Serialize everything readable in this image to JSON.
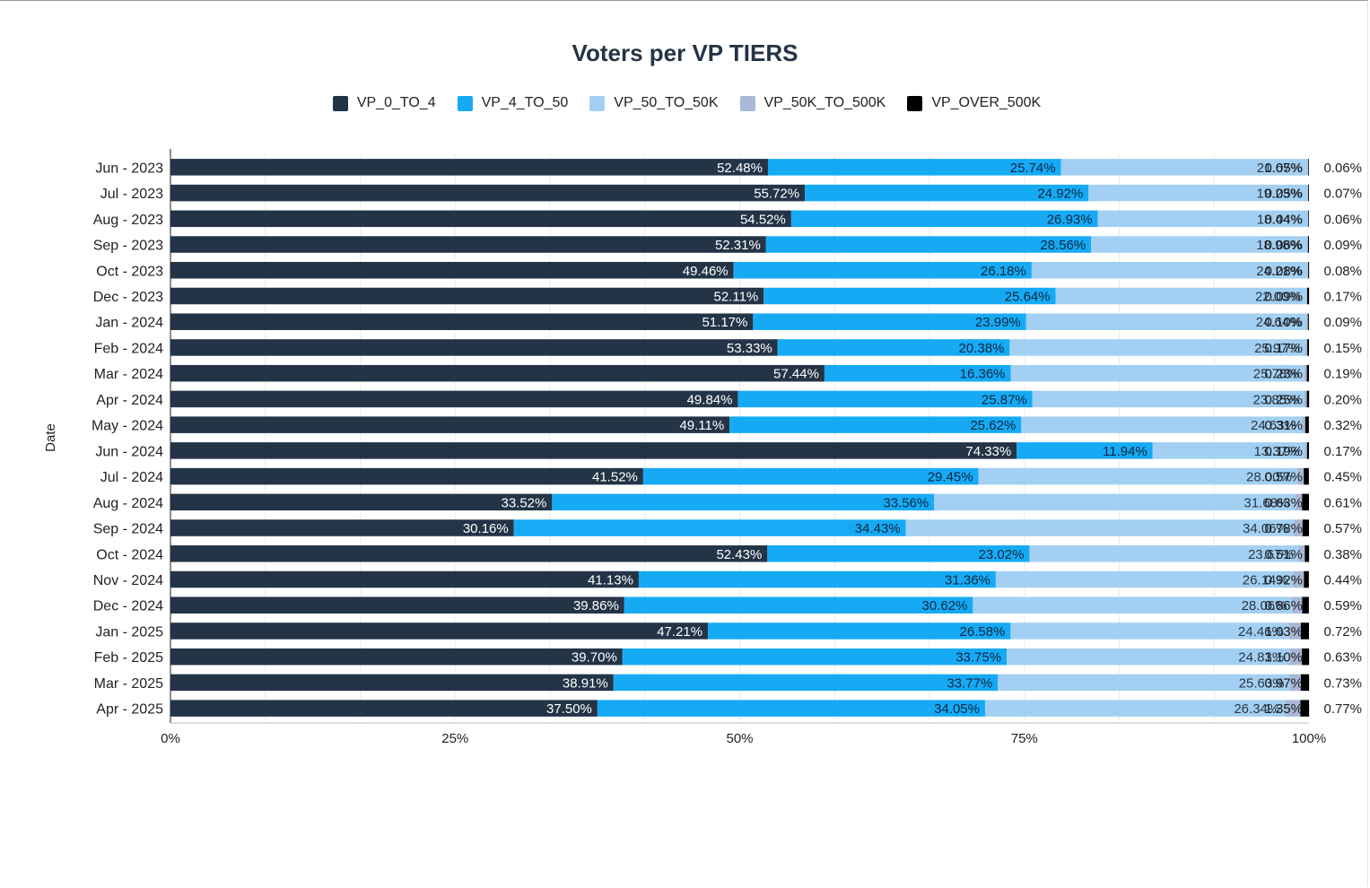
{
  "chart_data": {
    "type": "bar",
    "orientation": "horizontal",
    "stacked": true,
    "title": "Voters per VP TIERS",
    "ylabel": "Date",
    "xlim": [
      0,
      100
    ],
    "x_ticks": [
      "0%",
      "25%",
      "50%",
      "75%",
      "100%"
    ],
    "legend_placement": "top-center",
    "grid": true,
    "categories": [
      "Jun - 2023",
      "Jul - 2023",
      "Aug - 2023",
      "Sep - 2023",
      "Oct - 2023",
      "Dec - 2023",
      "Jan - 2024",
      "Feb - 2024",
      "Mar - 2024",
      "Apr - 2024",
      "May - 2024",
      "Jun - 2024",
      "Jul - 2024",
      "Aug - 2024",
      "Sep - 2024",
      "Oct - 2024",
      "Nov - 2024",
      "Dec - 2024",
      "Jan - 2025",
      "Feb - 2025",
      "Mar - 2025",
      "Apr - 2025"
    ],
    "series": [
      {
        "name": "VP_0_TO_4",
        "color": "#243447",
        "values": [
          52.48,
          55.72,
          54.52,
          52.31,
          49.46,
          52.11,
          51.17,
          53.33,
          57.44,
          49.84,
          49.11,
          74.33,
          41.52,
          33.52,
          30.16,
          52.43,
          41.13,
          39.86,
          47.21,
          39.7,
          38.91,
          37.5
        ]
      },
      {
        "name": "VP_4_TO_50",
        "color": "#16aaf5",
        "values": [
          25.74,
          24.92,
          26.93,
          28.56,
          26.18,
          25.64,
          23.99,
          20.38,
          16.36,
          25.87,
          25.62,
          11.94,
          29.45,
          33.56,
          34.43,
          23.02,
          31.36,
          30.62,
          26.58,
          33.75,
          33.77,
          34.05
        ]
      },
      {
        "name": "VP_50_TO_50K",
        "color": "#a3d0f2",
        "values": [
          21.67,
          19.23,
          18.44,
          18.98,
          24.21,
          22.0,
          24.64,
          25.97,
          25.78,
          23.85,
          24.63,
          13.37,
          28.0,
          31.68,
          34.06,
          23.67,
          26.14,
          28.06,
          24.46,
          24.83,
          25.63,
          26.34
        ]
      },
      {
        "name": "VP_50K_TO_500K",
        "color": "#a9b8d6",
        "values": [
          0.05,
          0.05,
          0.04,
          0.06,
          0.08,
          0.09,
          0.1,
          0.17,
          0.23,
          0.25,
          0.31,
          0.19,
          0.57,
          0.63,
          0.78,
          0.51,
          0.92,
          0.86,
          1.03,
          1.1,
          0.97,
          1.35
        ]
      },
      {
        "name": "VP_OVER_500K",
        "color": "#000000",
        "values": [
          0.06,
          0.07,
          0.06,
          0.09,
          0.08,
          0.17,
          0.09,
          0.15,
          0.19,
          0.2,
          0.32,
          0.17,
          0.45,
          0.61,
          0.57,
          0.38,
          0.44,
          0.59,
          0.72,
          0.63,
          0.73,
          0.77
        ]
      }
    ]
  }
}
